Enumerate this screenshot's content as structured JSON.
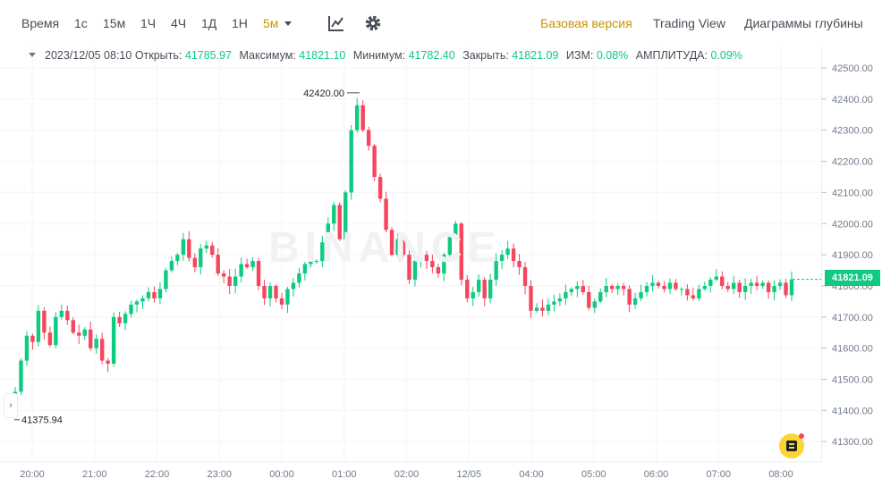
{
  "toolbar": {
    "time_label": "Время",
    "intervals": [
      "1с",
      "15м",
      "1Ч",
      "4Ч",
      "1Д",
      "1Н"
    ],
    "active_interval": "5м",
    "indicator_icon": "indicator-chart-icon",
    "settings_icon": "gear-icon",
    "views": [
      "Базовая версия",
      "Trading View",
      "Диаграммы глубины"
    ],
    "active_view": "Базовая версия"
  },
  "info_bar": {
    "datetime": "2023/12/05 08:10",
    "open_label": "Открыть:",
    "open_value": "41785.97",
    "high_label": "Максимум:",
    "high_value": "41821.10",
    "low_label": "Минимум:",
    "low_value": "41782.40",
    "close_label": "Закрыть:",
    "close_value": "41821.09",
    "change_label": "ИЗМ:",
    "change_value": "0.08%",
    "amp_label": "АМПЛИТУДА:",
    "amp_value": "0.09%"
  },
  "watermark": "BINANCE",
  "current_price": "41821.09",
  "colors": {
    "up": "#0ecb81",
    "down": "#f6465d",
    "accent": "#c99400"
  },
  "chart_data": {
    "type": "candlestick",
    "ylim": [
      41250,
      42540
    ],
    "y_ticks": [
      "42500.00",
      "42400.00",
      "42300.00",
      "42200.00",
      "42100.00",
      "42000.00",
      "41900.00",
      "41800.00",
      "41700.00",
      "41600.00",
      "41500.00",
      "41400.00",
      "41300.00"
    ],
    "x_ticks": [
      "20:00",
      "21:00",
      "22:00",
      "23:00",
      "00:00",
      "01:00",
      "02:00",
      "12/05",
      "04:00",
      "05:00",
      "06:00",
      "07:00",
      "08:00"
    ],
    "max_annotation": "42420.00",
    "min_annotation": "41375.94",
    "close_series": [
      41460,
      41560,
      41640,
      41620,
      41720,
      41650,
      41610,
      41700,
      41720,
      41690,
      41650,
      41640,
      41660,
      41600,
      41630,
      41560,
      41550,
      41700,
      41680,
      41710,
      41740,
      41750,
      41760,
      41780,
      41760,
      41790,
      41850,
      41880,
      41900,
      41950,
      41890,
      41860,
      41920,
      41930,
      41900,
      41840,
      41830,
      41800,
      41830,
      41870,
      41860,
      41880,
      41800,
      41760,
      41800,
      41760,
      41740,
      41790,
      41810,
      41840,
      41870,
      41880,
      41880,
      41940,
      42000,
      42060,
      41950,
      42100,
      42300,
      42380,
      42300,
      42250,
      42150,
      42080,
      41980,
      41900,
      41950,
      41900,
      41820,
      41880,
      41900,
      41880,
      41860,
      41840,
      41900,
      41960,
      42000,
      41820,
      41760,
      41780,
      41820,
      41760,
      41820,
      41880,
      41900,
      41920,
      41880,
      41860,
      41800,
      41720,
      41730,
      41720,
      41740,
      41750,
      41760,
      41780,
      41790,
      41800,
      41780,
      41730,
      41750,
      41780,
      41800,
      41790,
      41800,
      41790,
      41740,
      41760,
      41780,
      41800,
      41810,
      41800,
      41790,
      41810,
      41790,
      41790,
      41770,
      41760,
      41790,
      41800,
      41820,
      41830,
      41800,
      41790,
      41810,
      41780,
      41800,
      41810,
      41800,
      41810,
      41780,
      41800,
      41810,
      41770,
      41821.09
    ]
  }
}
